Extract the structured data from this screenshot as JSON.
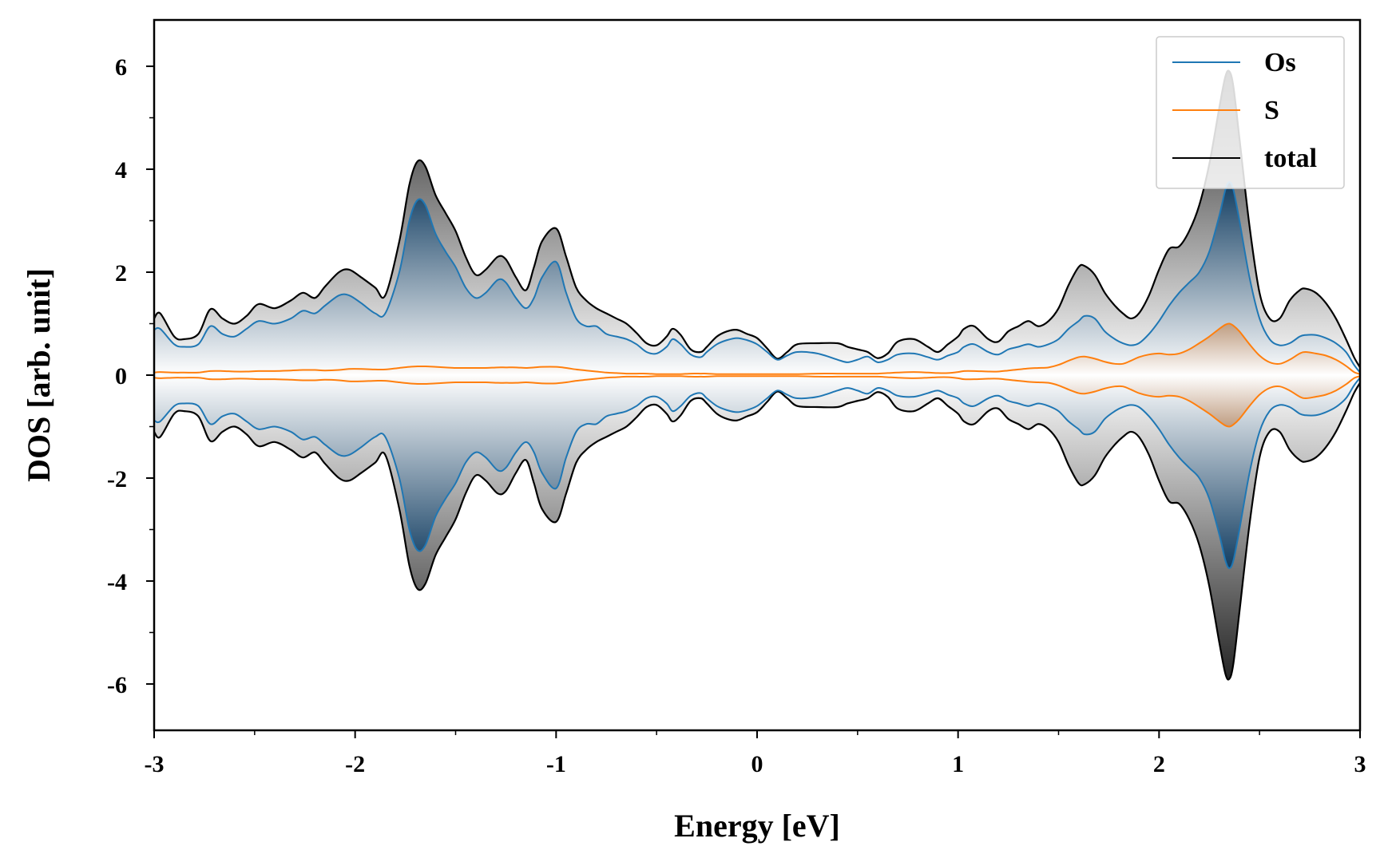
{
  "chart_data": {
    "type": "area",
    "xlabel": "Energy [eV]",
    "ylabel": "DOS [arb. unit]",
    "xlim": [
      -3,
      3
    ],
    "ylim": [
      -6.9,
      6.9
    ],
    "xticks": [
      -3,
      -2,
      -1,
      0,
      1,
      2,
      3
    ],
    "xtick_labels": [
      "-3",
      "-2",
      "-1",
      "0",
      "1",
      "2",
      "3"
    ],
    "yticks": [
      -6,
      -4,
      -2,
      0,
      2,
      4,
      6
    ],
    "ytick_labels": [
      "-6",
      "-4",
      "-2",
      "0",
      "2",
      "4",
      "6"
    ],
    "grid": false,
    "legend_position": "top-right",
    "mirrored_spin_down": true,
    "colors": {
      "Os": "#1f77b4",
      "S": "#ff7f0e",
      "total": "#000000",
      "Os_fill_dark": "#0e3a5f",
      "total_fill_dark": "#222222"
    },
    "x": [
      -3.0,
      -2.97,
      -2.9,
      -2.85,
      -2.78,
      -2.72,
      -2.66,
      -2.6,
      -2.54,
      -2.48,
      -2.4,
      -2.32,
      -2.26,
      -2.2,
      -2.15,
      -2.08,
      -2.03,
      -1.97,
      -1.9,
      -1.85,
      -1.78,
      -1.73,
      -1.69,
      -1.65,
      -1.6,
      -1.55,
      -1.5,
      -1.45,
      -1.4,
      -1.35,
      -1.29,
      -1.25,
      -1.2,
      -1.15,
      -1.11,
      -1.07,
      -1.0,
      -0.95,
      -0.9,
      -0.85,
      -0.8,
      -0.75,
      -0.7,
      -0.65,
      -0.6,
      -0.55,
      -0.5,
      -0.45,
      -0.42,
      -0.38,
      -0.33,
      -0.28,
      -0.25,
      -0.2,
      -0.15,
      -0.1,
      -0.05,
      0.0,
      0.05,
      0.1,
      0.15,
      0.2,
      0.3,
      0.4,
      0.45,
      0.5,
      0.55,
      0.6,
      0.65,
      0.7,
      0.78,
      0.85,
      0.9,
      0.95,
      1.0,
      1.03,
      1.08,
      1.15,
      1.2,
      1.25,
      1.3,
      1.35,
      1.4,
      1.45,
      1.5,
      1.55,
      1.6,
      1.63,
      1.68,
      1.73,
      1.78,
      1.82,
      1.86,
      1.9,
      1.95,
      2.0,
      2.05,
      2.1,
      2.15,
      2.2,
      2.25,
      2.3,
      2.33,
      2.35,
      2.37,
      2.4,
      2.45,
      2.5,
      2.55,
      2.6,
      2.65,
      2.7,
      2.73,
      2.78,
      2.83,
      2.88,
      2.93,
      2.97,
      3.0
    ],
    "series": [
      {
        "name": "Os",
        "values": [
          0.88,
          0.9,
          0.6,
          0.55,
          0.6,
          0.95,
          0.8,
          0.75,
          0.9,
          1.05,
          1.0,
          1.1,
          1.25,
          1.2,
          1.35,
          1.55,
          1.55,
          1.4,
          1.2,
          1.2,
          2.0,
          3.0,
          3.4,
          3.3,
          2.75,
          2.4,
          2.1,
          1.7,
          1.5,
          1.6,
          1.85,
          1.8,
          1.5,
          1.3,
          1.5,
          1.9,
          2.2,
          1.6,
          1.1,
          0.95,
          0.95,
          0.8,
          0.75,
          0.7,
          0.6,
          0.45,
          0.42,
          0.55,
          0.7,
          0.6,
          0.4,
          0.35,
          0.45,
          0.6,
          0.68,
          0.72,
          0.68,
          0.6,
          0.45,
          0.3,
          0.38,
          0.45,
          0.42,
          0.3,
          0.25,
          0.3,
          0.36,
          0.25,
          0.3,
          0.4,
          0.42,
          0.35,
          0.3,
          0.38,
          0.45,
          0.55,
          0.6,
          0.45,
          0.4,
          0.5,
          0.55,
          0.6,
          0.55,
          0.6,
          0.7,
          0.9,
          1.05,
          1.15,
          1.1,
          0.85,
          0.7,
          0.62,
          0.58,
          0.62,
          0.8,
          1.05,
          1.35,
          1.6,
          1.8,
          2.0,
          2.4,
          3.1,
          3.6,
          3.75,
          3.6,
          3.0,
          1.9,
          1.1,
          0.7,
          0.58,
          0.62,
          0.75,
          0.78,
          0.78,
          0.72,
          0.62,
          0.45,
          0.2,
          0.05
        ]
      },
      {
        "name": "S",
        "values": [
          0.05,
          0.06,
          0.05,
          0.05,
          0.05,
          0.08,
          0.08,
          0.07,
          0.07,
          0.08,
          0.08,
          0.09,
          0.1,
          0.1,
          0.09,
          0.1,
          0.12,
          0.12,
          0.11,
          0.11,
          0.14,
          0.16,
          0.17,
          0.17,
          0.16,
          0.15,
          0.14,
          0.14,
          0.14,
          0.14,
          0.15,
          0.15,
          0.15,
          0.14,
          0.15,
          0.16,
          0.16,
          0.14,
          0.11,
          0.09,
          0.07,
          0.05,
          0.04,
          0.03,
          0.03,
          0.03,
          0.02,
          0.02,
          0.02,
          0.02,
          0.03,
          0.03,
          0.03,
          0.02,
          0.02,
          0.02,
          0.02,
          0.02,
          0.02,
          0.02,
          0.02,
          0.02,
          0.03,
          0.03,
          0.03,
          0.03,
          0.03,
          0.03,
          0.04,
          0.05,
          0.06,
          0.05,
          0.04,
          0.04,
          0.06,
          0.08,
          0.08,
          0.07,
          0.07,
          0.09,
          0.11,
          0.13,
          0.14,
          0.15,
          0.2,
          0.28,
          0.35,
          0.36,
          0.32,
          0.26,
          0.22,
          0.22,
          0.28,
          0.35,
          0.4,
          0.42,
          0.4,
          0.42,
          0.5,
          0.62,
          0.75,
          0.9,
          0.98,
          1.0,
          0.96,
          0.85,
          0.6,
          0.38,
          0.25,
          0.22,
          0.3,
          0.42,
          0.45,
          0.42,
          0.38,
          0.3,
          0.18,
          0.06,
          0.02
        ]
      },
      {
        "name": "total",
        "values": [
          1.1,
          1.2,
          0.75,
          0.7,
          0.8,
          1.28,
          1.1,
          1.0,
          1.15,
          1.38,
          1.3,
          1.45,
          1.6,
          1.5,
          1.72,
          2.0,
          2.05,
          1.9,
          1.7,
          1.55,
          2.6,
          3.7,
          4.15,
          4.05,
          3.5,
          3.15,
          2.8,
          2.3,
          1.95,
          2.05,
          2.3,
          2.25,
          1.9,
          1.65,
          2.1,
          2.6,
          2.85,
          2.3,
          1.7,
          1.45,
          1.3,
          1.2,
          1.1,
          1.0,
          0.82,
          0.62,
          0.58,
          0.75,
          0.9,
          0.78,
          0.5,
          0.45,
          0.55,
          0.75,
          0.85,
          0.88,
          0.8,
          0.72,
          0.52,
          0.32,
          0.45,
          0.6,
          0.62,
          0.62,
          0.55,
          0.5,
          0.45,
          0.33,
          0.42,
          0.65,
          0.7,
          0.55,
          0.45,
          0.6,
          0.75,
          0.9,
          0.95,
          0.7,
          0.65,
          0.85,
          0.95,
          1.05,
          0.95,
          1.05,
          1.3,
          1.75,
          2.1,
          2.12,
          1.95,
          1.6,
          1.35,
          1.2,
          1.1,
          1.2,
          1.55,
          2.05,
          2.45,
          2.5,
          2.8,
          3.3,
          4.1,
          5.2,
          5.8,
          5.9,
          5.6,
          4.6,
          2.9,
          1.6,
          1.1,
          1.1,
          1.45,
          1.65,
          1.68,
          1.6,
          1.4,
          1.1,
          0.7,
          0.35,
          0.15
        ]
      }
    ]
  }
}
